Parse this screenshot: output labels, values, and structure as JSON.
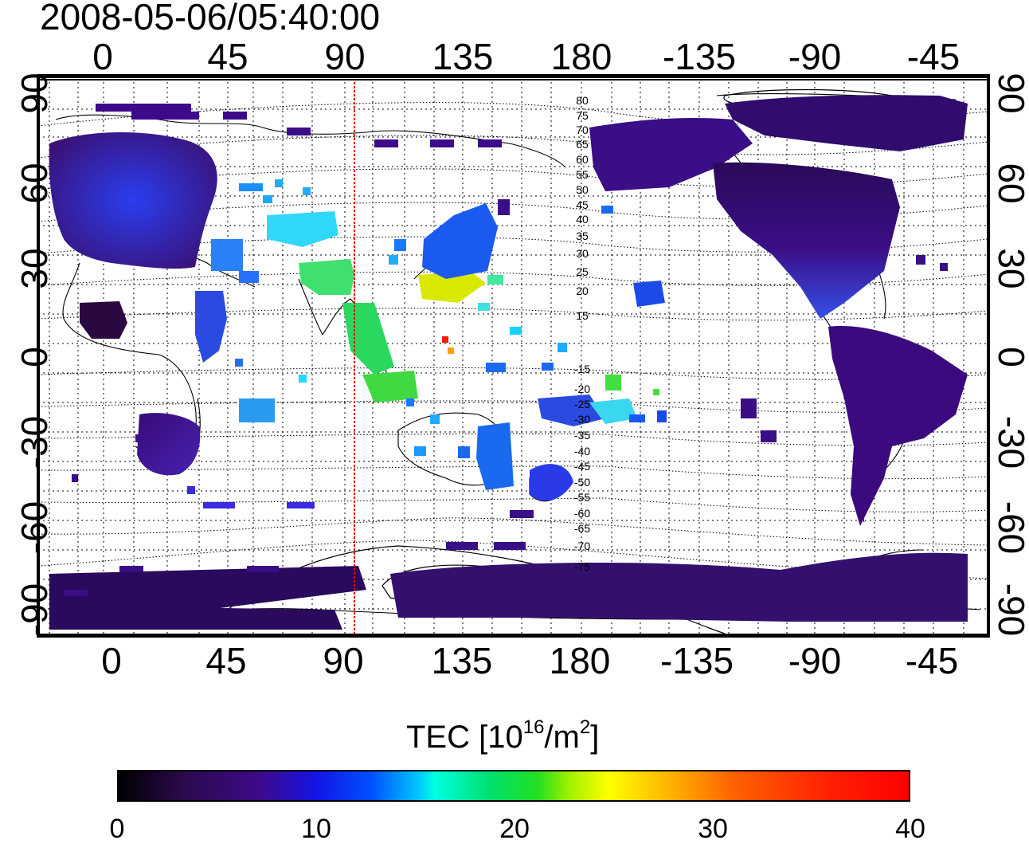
{
  "timestamp": "2008-05-06/05:40:00",
  "top_ticks": [
    "0",
    "45",
    "90",
    "135",
    "180",
    "-135",
    "-90",
    "-45"
  ],
  "bottom_ticks": [
    "0",
    "45",
    "90",
    "135",
    "180",
    "-135",
    "-90",
    "-45"
  ],
  "left_ticks": [
    "90",
    "60",
    "30",
    "0",
    "-30",
    "-60",
    "-90"
  ],
  "right_ticks": [
    "90",
    "60",
    "30",
    "0",
    "-30",
    "-60",
    "-90"
  ],
  "contour_labels": [
    "80",
    "75",
    "70",
    "65",
    "60",
    "55",
    "50",
    "45",
    "40",
    "35",
    "30",
    "25",
    "20",
    "15",
    "-15",
    "-20",
    "-25",
    "-30",
    "-35",
    "-40",
    "-45",
    "-50",
    "-55",
    "-60",
    "-65",
    "-70",
    "-75"
  ],
  "colorbar": {
    "title_prefix": "TEC  [10",
    "title_exp1": "16",
    "title_mid": "/m",
    "title_exp2": "2",
    "title_suffix": "]",
    "ticks": [
      "0",
      "10",
      "20",
      "30",
      "40"
    ]
  },
  "colors": {
    "meridian_line": "#e00000",
    "land_low": "#3a0a7a",
    "land_mid": "#1a3aff"
  },
  "chart_data": {
    "type": "heatmap",
    "x_range": [
      -30,
      330
    ],
    "y_range": [
      -90,
      90
    ],
    "color_scale_range": [
      0,
      40
    ],
    "marked_longitude": 95,
    "grid": true
  }
}
